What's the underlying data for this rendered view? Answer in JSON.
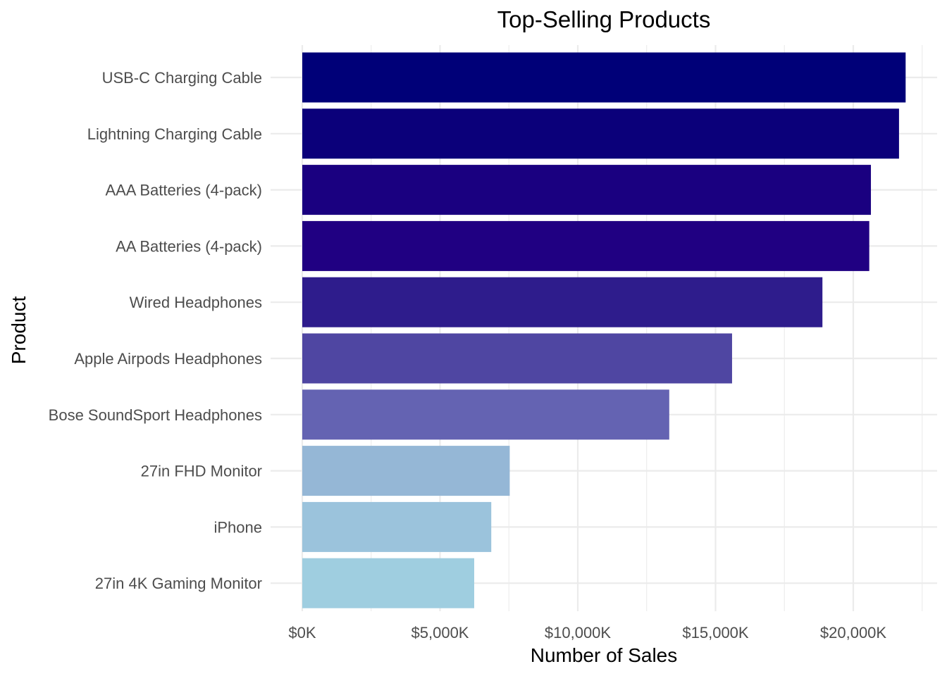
{
  "chart_data": {
    "type": "bar",
    "orientation": "horizontal",
    "title": "Top-Selling Products",
    "xlabel": "Number of Sales",
    "ylabel": "Product",
    "categories": [
      "USB-C Charging Cable",
      "Lightning Charging Cable",
      "AAA Batteries (4-pack)",
      "AA Batteries (4-pack)",
      "Wired Headphones",
      "Apple Airpods Headphones",
      "Bose SoundSport Headphones",
      "27in FHD Monitor",
      "iPhone",
      "27in 4K Gaming Monitor"
    ],
    "values": [
      21900,
      21660,
      20640,
      20580,
      18880,
      15600,
      13320,
      7530,
      6860,
      6240
    ],
    "colors": [
      "#000078",
      "#0b007a",
      "#1a0080",
      "#200082",
      "#2e1c8c",
      "#4f46a2",
      "#6463b2",
      "#95b7d6",
      "#9bc3dc",
      "#9fcee0"
    ],
    "xlim": [
      0,
      22500
    ],
    "x_ticks": [
      0,
      5000,
      10000,
      15000,
      20000
    ],
    "x_tick_labels": [
      "$0K",
      "$5,000K",
      "$10,000K",
      "$15,000K",
      "$20,000K"
    ],
    "grid": true
  }
}
